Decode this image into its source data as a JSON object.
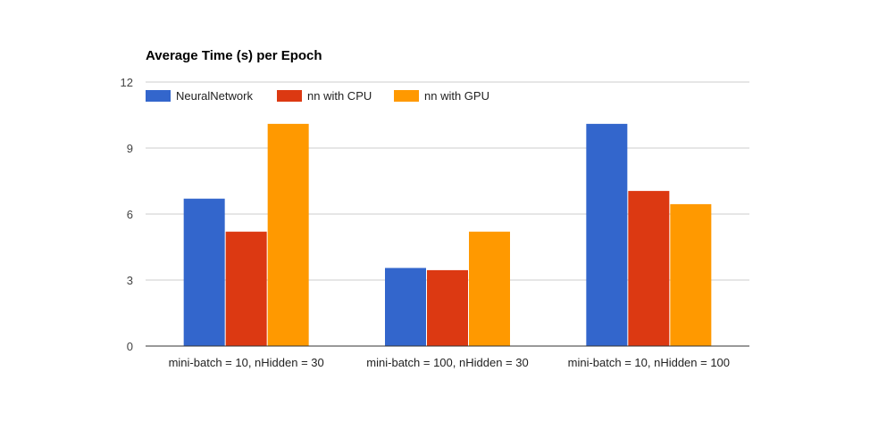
{
  "chart_data": {
    "type": "bar",
    "title": "Average Time (s) per Epoch",
    "xlabel": "",
    "ylabel": "",
    "categories": [
      "mini-batch = 10, nHidden = 30",
      "mini-batch = 100, nHidden = 30",
      "mini-batch = 10, nHidden = 100"
    ],
    "series": [
      {
        "name": "NeuralNetwork",
        "color": "#3366cc",
        "values": [
          6.7,
          3.55,
          10.1
        ]
      },
      {
        "name": "nn with CPU",
        "color": "#dc3912",
        "values": [
          5.2,
          3.45,
          7.05
        ]
      },
      {
        "name": "nn with GPU",
        "color": "#ff9900",
        "values": [
          10.1,
          5.2,
          6.45
        ]
      }
    ],
    "ylim": [
      0,
      12
    ],
    "yticks": [
      0,
      3,
      6,
      9,
      12
    ],
    "grid": true,
    "legend_position": "top-left"
  }
}
